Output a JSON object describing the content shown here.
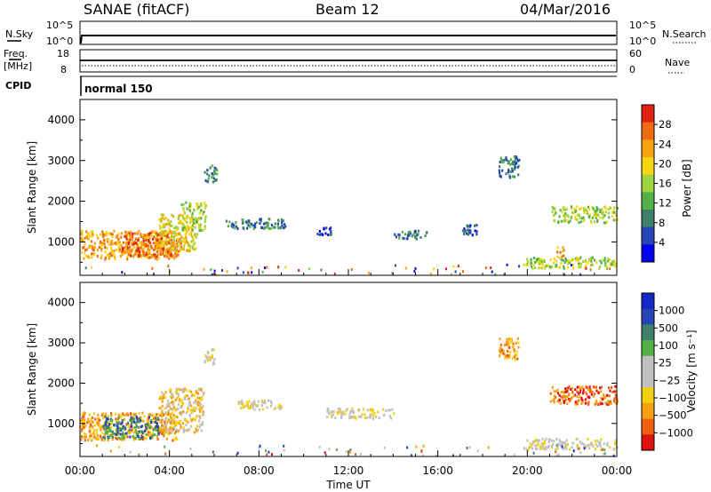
{
  "header": {
    "station": "SANAE (fitACF)",
    "beam": "Beam 12",
    "date": "04/Mar/2016"
  },
  "panels": {
    "nsky": {
      "label": "N.Sky",
      "ticks_left": [
        "10^5",
        "10^0"
      ],
      "ticks_right": [
        "10^5",
        "10^0"
      ],
      "right_label": "N.Search"
    },
    "freq": {
      "label_top": "Freq.",
      "label_bottom": "[MHz]",
      "ticks_left": [
        "18",
        "8"
      ],
      "ticks_right": [
        "60",
        "0"
      ],
      "right_label": "Nave"
    },
    "cpid": {
      "label": "CPID",
      "mode": "normal 150"
    }
  },
  "colors": {
    "power": [
      "#0000ee",
      "#2546b4",
      "#3f7f6b",
      "#55b04a",
      "#9ed43f",
      "#f5d412",
      "#f5a310",
      "#f06a12",
      "#e02010"
    ],
    "velocity": [
      "#e01010",
      "#f06010",
      "#f5a010",
      "#f5d010",
      "#c0c0c0",
      "#c0c0c0",
      "#55b04a",
      "#3f7f6b",
      "#2546b4",
      "#1428c8"
    ],
    "ground": "#bbbbbb"
  },
  "chart_data": [
    {
      "type": "heatmap",
      "name": "power",
      "ylabel": "Slant Range [km]",
      "xlabel": "",
      "ylim": [
        180,
        4500
      ],
      "xlim": [
        0,
        24
      ],
      "yticks": [
        "4000",
        "3000",
        "2000",
        "1000"
      ],
      "colorbar_label": "Power [dB]",
      "colorbar_ticks": [
        "28",
        "24",
        "20",
        "16",
        "12",
        "8",
        "4"
      ],
      "regions": [
        {
          "t0": 0.0,
          "t1": 4.3,
          "r0": 600,
          "r1": 1300,
          "level": 6
        },
        {
          "t0": 1.8,
          "t1": 4.5,
          "r0": 650,
          "r1": 1250,
          "level": 7
        },
        {
          "t0": 3.5,
          "t1": 5.2,
          "r0": 800,
          "r1": 1700,
          "level": 5
        },
        {
          "t0": 4.5,
          "t1": 5.6,
          "r0": 1300,
          "r1": 2000,
          "level": 4
        },
        {
          "t0": 5.5,
          "t1": 6.1,
          "r0": 2500,
          "r1": 2900,
          "level": 2
        },
        {
          "t0": 6.5,
          "t1": 9.2,
          "r0": 1350,
          "r1": 1600,
          "level": 2
        },
        {
          "t0": 10.5,
          "t1": 11.2,
          "r0": 1200,
          "r1": 1400,
          "level": 1
        },
        {
          "t0": 14.0,
          "t1": 15.5,
          "r0": 1100,
          "r1": 1300,
          "level": 2
        },
        {
          "t0": 17.0,
          "t1": 17.8,
          "r0": 1200,
          "r1": 1450,
          "level": 1
        },
        {
          "t0": 18.7,
          "t1": 19.6,
          "r0": 2600,
          "r1": 3150,
          "level": 2
        },
        {
          "t0": 19.8,
          "t1": 24.0,
          "r0": 380,
          "r1": 650,
          "level": 4
        },
        {
          "t0": 21.0,
          "t1": 24.0,
          "r0": 1500,
          "r1": 1900,
          "level": 4
        },
        {
          "t0": 21.3,
          "t1": 21.6,
          "r0": 650,
          "r1": 900,
          "level": 6
        }
      ]
    },
    {
      "type": "heatmap",
      "name": "velocity",
      "ylabel": "Slant Range [km]",
      "xlabel": "Time UT",
      "ylim": [
        180,
        4500
      ],
      "xlim": [
        0,
        24
      ],
      "yticks": [
        "4000",
        "3000",
        "2000",
        "1000"
      ],
      "xticks": [
        "00:00",
        "04:00",
        "08:00",
        "12:00",
        "16:00",
        "20:00",
        "00:00"
      ],
      "colorbar_label": "Velocity [m s⁻¹]",
      "colorbar_ticks": [
        "1000",
        "500",
        "100",
        "25",
        "−25",
        "−100",
        "−500",
        "−1000"
      ],
      "regions": [
        {
          "t0": 0.0,
          "t1": 4.3,
          "r0": 600,
          "r1": 1300,
          "level": 2
        },
        {
          "t0": 1.0,
          "t1": 3.5,
          "r0": 650,
          "r1": 1200,
          "level": 7
        },
        {
          "t0": 3.5,
          "t1": 5.5,
          "r0": 800,
          "r1": 1900,
          "level": 3
        },
        {
          "t0": 5.5,
          "t1": 6.0,
          "r0": 2500,
          "r1": 2900,
          "level": 4
        },
        {
          "t0": 7.0,
          "t1": 9.0,
          "r0": 1350,
          "r1": 1600,
          "level": 4
        },
        {
          "t0": 11.0,
          "t1": 14.0,
          "r0": 1150,
          "r1": 1400,
          "level": 4
        },
        {
          "t0": 18.7,
          "t1": 19.6,
          "r0": 2600,
          "r1": 3150,
          "level": 2
        },
        {
          "t0": 19.8,
          "t1": 24.0,
          "r0": 380,
          "r1": 650,
          "level": 4
        },
        {
          "t0": 21.0,
          "t1": 24.0,
          "r0": 1500,
          "r1": 1950,
          "level": 1
        }
      ]
    }
  ]
}
